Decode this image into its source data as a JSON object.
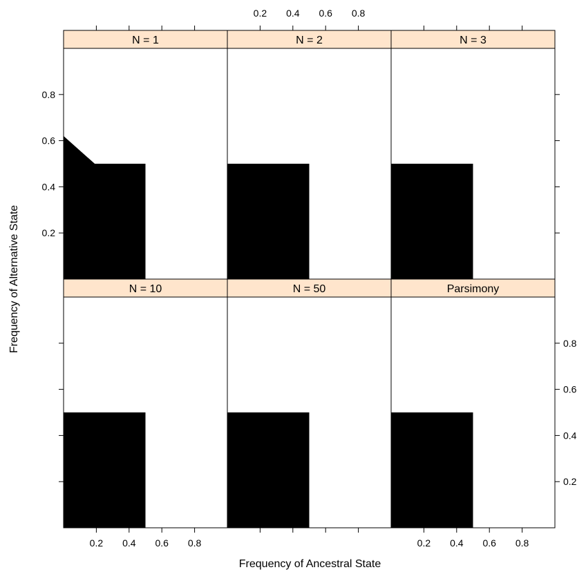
{
  "chart_data": {
    "type": "area",
    "xlabel": "Frequency of Ancestral State",
    "ylabel": "Frequency of Alternative State",
    "xlim": [
      0,
      1
    ],
    "ylim": [
      0,
      1
    ],
    "x_ticks": [
      0.2,
      0.4,
      0.6,
      0.8
    ],
    "y_ticks": [
      0.2,
      0.4,
      0.6,
      0.8
    ],
    "x_tick_labels": [
      "0.2",
      "0.4",
      "0.6",
      "0.8"
    ],
    "y_tick_labels": [
      "0.2",
      "0.4",
      "0.6",
      "0.8"
    ],
    "strip_color": "#ffe5cc",
    "fill_color": "#000000",
    "panels": [
      {
        "label": "N = 1",
        "regions": [
          [
            [
              0,
              0
            ],
            [
              0,
              0.5
            ],
            [
              0.5,
              0.5
            ],
            [
              0.5,
              0
            ],
            [
              0,
              0
            ]
          ],
          [
            [
              0,
              0.5
            ],
            [
              0,
              0.62
            ],
            [
              0.38,
              0.38
            ],
            [
              0.5,
              0.5
            ],
            [
              0,
              0.5
            ]
          ]
        ]
      },
      {
        "label": "N = 2",
        "regions": [
          [
            [
              0,
              0
            ],
            [
              0,
              0.5
            ],
            [
              0.5,
              0.5
            ],
            [
              0.5,
              0
            ],
            [
              0,
              0
            ]
          ]
        ]
      },
      {
        "label": "N = 3",
        "regions": [
          [
            [
              0,
              0
            ],
            [
              0,
              0.5
            ],
            [
              0.5,
              0.5
            ],
            [
              0.5,
              0
            ],
            [
              0,
              0
            ]
          ]
        ]
      },
      {
        "label": "N = 10",
        "regions": [
          [
            [
              0,
              0
            ],
            [
              0,
              0.5
            ],
            [
              0.5,
              0.5
            ],
            [
              0.5,
              0
            ],
            [
              0,
              0
            ]
          ]
        ]
      },
      {
        "label": "N = 50",
        "regions": [
          [
            [
              0,
              0
            ],
            [
              0,
              0.5
            ],
            [
              0.5,
              0.5
            ],
            [
              0.5,
              0
            ],
            [
              0,
              0
            ]
          ]
        ]
      },
      {
        "label": "Parsimony",
        "regions": [
          [
            [
              0,
              0
            ],
            [
              0,
              0.5
            ],
            [
              0.5,
              0.5
            ],
            [
              0.5,
              0
            ],
            [
              0,
              0
            ]
          ]
        ]
      }
    ]
  }
}
